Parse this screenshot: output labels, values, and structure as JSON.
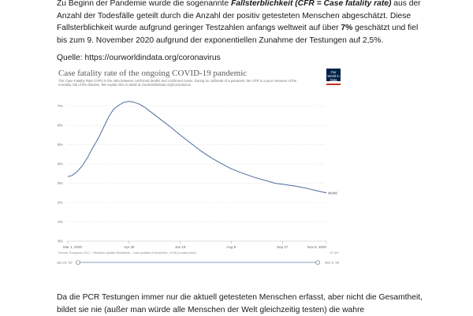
{
  "document": {
    "paragraph1": [
      {
        "text": "Zu Beginn der Pandemie wurde die sogenannte ",
        "style": "normal"
      },
      {
        "text": "Fallsterblichkeit (CFR = Case fatality rate)",
        "style": "bolditalic"
      },
      {
        "text": " aus der Anzahl der Todesfälle geteilt durch die Anzahl der positiv getesteten Menschen abgeschätzt. Diese Fallsterblichkeit wurde aufgrund geringer Testzahlen anfangs weltweit auf über ",
        "style": "normal"
      },
      {
        "text": "7%",
        "style": "bold"
      },
      {
        "text": " geschätzt und fiel bis zum 9. November 2020 aufgrund der exponentiellen Zunahme der Testungen auf 2,5%.",
        "style": "normal"
      }
    ],
    "source_line": "Quelle: https://ourworldindata.org/coronavirus",
    "paragraph2": "Da die PCR Testungen immer nur die aktuell getesteten Menschen erfasst, aber nicht die Gesamtheit, bildet sie nie (außer man würde alle Menschen der Welt gleichzeitig testen) die wahre"
  },
  "figure": {
    "title": "Case fatality rate of the ongoing COVID-19 pandemic",
    "subtitle": "The Case Fatality Rate (CFR) is the ratio between confirmed deaths and confirmed cases. During an outbreak of a pandemic the CFR is a poor measure of the mortality risk of the disease. We explain this in detail at OurWorldInData.org/Coronavirus",
    "logo_text": "Our World in Data",
    "source": "Source: European CDC – Situation Update Worldwide – Last updated 9 November, 10:06 (London time)",
    "license": "CC BY",
    "slider": {
      "start_label": "Jan 23, '20",
      "end_label": "Nov 9, '20"
    }
  },
  "chart_data": {
    "type": "line",
    "title": "Case fatality rate of the ongoing COVID-19 pandemic",
    "xlabel": "",
    "ylabel": "",
    "ylim": [
      0,
      7.6
    ],
    "y_ticks": [
      "0%",
      "1%",
      "2%",
      "3%",
      "4%",
      "5%",
      "6%",
      "7%"
    ],
    "x_tick_labels": [
      "Mar 1, 2020",
      "Apr 30",
      "Jun 19",
      "Aug 8",
      "Sep 27",
      "Nov 9, 2020"
    ],
    "x_range": [
      "2020-03-01",
      "2020-11-09"
    ],
    "grid": true,
    "series": [
      {
        "name": "World",
        "color": "#4c6a9c",
        "points": [
          [
            "2020-03-01",
            3.35
          ],
          [
            "2020-03-05",
            3.4
          ],
          [
            "2020-03-10",
            3.6
          ],
          [
            "2020-03-15",
            3.9
          ],
          [
            "2020-03-20",
            4.3
          ],
          [
            "2020-03-25",
            4.8
          ],
          [
            "2020-03-30",
            5.25
          ],
          [
            "2020-04-05",
            5.9
          ],
          [
            "2020-04-10",
            6.45
          ],
          [
            "2020-04-15",
            6.85
          ],
          [
            "2020-04-20",
            7.05
          ],
          [
            "2020-04-25",
            7.2
          ],
          [
            "2020-04-30",
            7.25
          ],
          [
            "2020-05-05",
            7.2
          ],
          [
            "2020-05-10",
            7.1
          ],
          [
            "2020-05-15",
            6.95
          ],
          [
            "2020-05-20",
            6.75
          ],
          [
            "2020-05-25",
            6.55
          ],
          [
            "2020-05-31",
            6.3
          ],
          [
            "2020-06-10",
            5.9
          ],
          [
            "2020-06-19",
            5.5
          ],
          [
            "2020-06-30",
            5.05
          ],
          [
            "2020-07-10",
            4.65
          ],
          [
            "2020-07-20",
            4.3
          ],
          [
            "2020-07-30",
            4.0
          ],
          [
            "2020-08-08",
            3.75
          ],
          [
            "2020-08-20",
            3.5
          ],
          [
            "2020-08-31",
            3.3
          ],
          [
            "2020-09-10",
            3.15
          ],
          [
            "2020-09-20",
            3.0
          ],
          [
            "2020-09-27",
            2.95
          ],
          [
            "2020-10-10",
            2.85
          ],
          [
            "2020-10-20",
            2.75
          ],
          [
            "2020-10-30",
            2.62
          ],
          [
            "2020-11-09",
            2.5
          ]
        ]
      }
    ]
  }
}
